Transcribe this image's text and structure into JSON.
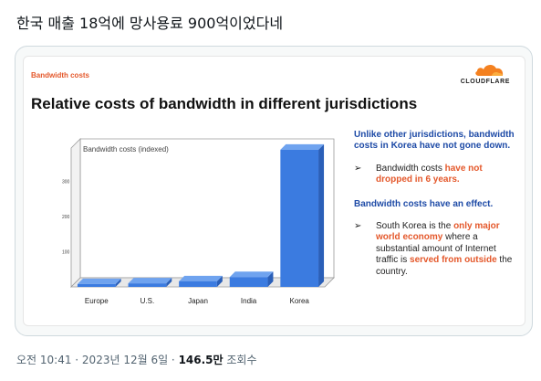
{
  "tweet": {
    "text": "한국 매출 18억에 망사용료 900억이었다네"
  },
  "slide": {
    "label": "Bandwidth costs",
    "title": "Relative costs of bandwidth in different jurisdictions",
    "logo_text": "CLOUDFLARE",
    "notes": {
      "heading1": "Unlike other jurisdictions, bandwidth costs in Korea have not gone down.",
      "bullet1_pre": "Bandwidth costs ",
      "bullet1_hl": "have not dropped in 6 years.",
      "heading2": "Bandwidth costs have an effect.",
      "bullet2_pre": "South Korea is the ",
      "bullet2_hl1": "only major world economy",
      "bullet2_mid": " where a substantial amount of Internet traffic is ",
      "bullet2_hl2": "served from outside",
      "bullet2_post": " the country."
    }
  },
  "chart_data": {
    "type": "bar",
    "title": "Bandwidth costs (indexed)",
    "categories": [
      "Europe",
      "U.S.",
      "Japan",
      "India",
      "Korea"
    ],
    "values": [
      8,
      10,
      16,
      28,
      390
    ],
    "yticks": [
      "100",
      "200",
      "300"
    ],
    "ytick_values": [
      100,
      200,
      300
    ],
    "ylim": [
      0,
      400
    ],
    "colors": {
      "bar_front": "#3b7be0",
      "bar_top": "#6fa3ef",
      "bar_side": "#2a5fb8"
    }
  },
  "meta": {
    "time": "오전 10:41 · 2023년 12월 6일 · ",
    "views": "146.5만",
    "views_label": " 조회수"
  }
}
